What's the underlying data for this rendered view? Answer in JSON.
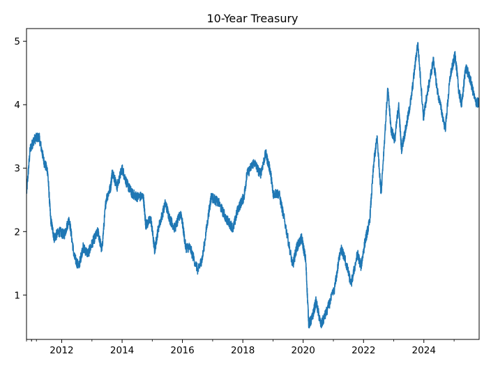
{
  "chart_data": {
    "type": "line",
    "title": "10-Year Treasury",
    "xlabel": "",
    "ylabel": "",
    "xlim": [
      "2010-11-01",
      "2025-10-31"
    ],
    "ylim": [
      0.3,
      5.2
    ],
    "x_ticks": [
      "2012",
      "2014",
      "2016",
      "2018",
      "2020",
      "2022",
      "2024"
    ],
    "y_ticks": [
      "1",
      "2",
      "3",
      "4",
      "5"
    ],
    "grid": false,
    "legend": "none",
    "color": "#1f77b4",
    "series": [
      {
        "x": [
          "2010-11-01",
          "2010-12-15",
          "2011-02-01",
          "2011-04-01",
          "2011-06-01",
          "2011-07-15",
          "2011-08-20",
          "2011-10-01",
          "2011-12-01",
          "2012-02-01",
          "2012-04-01",
          "2012-06-01",
          "2012-07-25",
          "2012-09-15",
          "2012-11-15",
          "2013-01-15",
          "2013-03-15",
          "2013-05-01",
          "2013-06-20",
          "2013-08-15",
          "2013-09-05",
          "2013-11-01",
          "2013-12-31",
          "2014-03-01",
          "2014-05-01",
          "2014-07-01",
          "2014-09-15",
          "2014-10-15",
          "2014-12-15",
          "2015-01-30",
          "2015-03-15",
          "2015-06-10",
          "2015-08-01",
          "2015-10-01",
          "2015-12-15",
          "2016-02-10",
          "2016-04-01",
          "2016-07-08",
          "2016-09-01",
          "2016-11-15",
          "2016-12-15",
          "2017-03-15",
          "2017-06-15",
          "2017-09-07",
          "2017-11-01",
          "2018-01-15",
          "2018-02-20",
          "2018-05-17",
          "2018-08-01",
          "2018-10-05",
          "2018-12-01",
          "2019-01-03",
          "2019-03-15",
          "2019-06-01",
          "2019-08-28",
          "2019-10-15",
          "2019-12-15",
          "2020-02-01",
          "2020-03-09",
          "2020-04-15",
          "2020-06-05",
          "2020-08-04",
          "2020-10-15",
          "2021-01-15",
          "2021-03-31",
          "2021-05-15",
          "2021-08-04",
          "2021-10-20",
          "2021-12-01",
          "2022-01-20",
          "2022-03-15",
          "2022-05-06",
          "2022-06-14",
          "2022-08-01",
          "2022-10-21",
          "2022-12-01",
          "2023-01-15",
          "2023-03-01",
          "2023-04-05",
          "2023-06-01",
          "2023-08-01",
          "2023-10-19",
          "2023-12-27",
          "2024-02-01",
          "2024-04-25",
          "2024-06-15",
          "2024-09-16",
          "2024-11-15",
          "2025-01-14",
          "2025-02-28",
          "2025-04-04",
          "2025-05-21",
          "2025-07-15",
          "2025-09-15",
          "2025-10-31"
        ],
        "y": [
          2.6,
          3.3,
          3.45,
          3.5,
          3.1,
          2.95,
          2.2,
          1.9,
          2.0,
          1.95,
          2.2,
          1.6,
          1.45,
          1.75,
          1.65,
          1.85,
          2.0,
          1.7,
          2.5,
          2.7,
          2.95,
          2.7,
          3.0,
          2.75,
          2.6,
          2.55,
          2.55,
          2.1,
          2.2,
          1.7,
          2.05,
          2.45,
          2.2,
          2.05,
          2.3,
          1.75,
          1.75,
          1.38,
          1.6,
          2.3,
          2.55,
          2.45,
          2.2,
          2.05,
          2.35,
          2.55,
          2.9,
          3.1,
          2.9,
          3.23,
          2.95,
          2.6,
          2.6,
          2.1,
          1.46,
          1.75,
          1.9,
          1.55,
          0.54,
          0.62,
          0.9,
          0.52,
          0.75,
          1.1,
          1.74,
          1.6,
          1.17,
          1.65,
          1.45,
          1.85,
          2.15,
          3.1,
          3.48,
          2.6,
          4.25,
          3.6,
          3.45,
          4.0,
          3.3,
          3.65,
          4.1,
          4.98,
          3.8,
          4.1,
          4.7,
          4.2,
          3.62,
          4.45,
          4.79,
          4.2,
          4.0,
          4.6,
          4.4,
          4.05,
          4.02
        ]
      }
    ]
  }
}
